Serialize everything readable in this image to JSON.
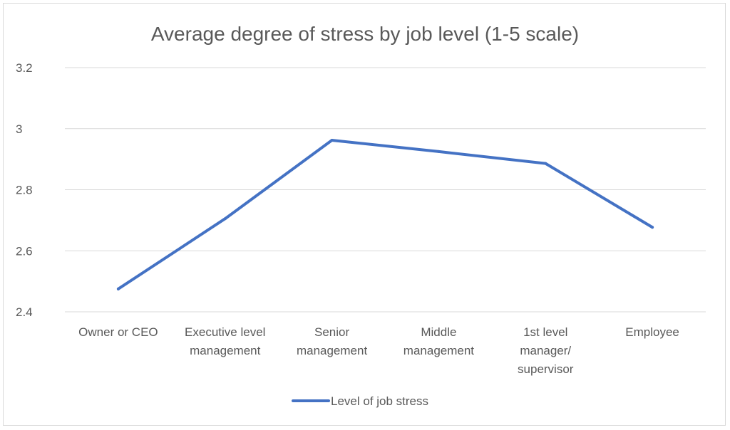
{
  "chart_data": {
    "type": "line",
    "title": "Average degree of stress by job level (1-5 scale)",
    "xlabel": "",
    "ylabel": "",
    "categories": [
      [
        "Owner or CEO"
      ],
      [
        "Executive level",
        "management"
      ],
      [
        "Senior",
        "management"
      ],
      [
        "Middle",
        "management"
      ],
      [
        "1st level",
        "manager/",
        "supervisor"
      ],
      [
        "Employee"
      ]
    ],
    "series": [
      {
        "name": "Level of job stress",
        "values": [
          2.475,
          2.705,
          2.962,
          2.925,
          2.886,
          2.677
        ],
        "color": "#4472C4"
      }
    ],
    "ylim": [
      2.4,
      3.2
    ],
    "yticks": [
      "2.4",
      "2.6",
      "2.8",
      "3",
      "3.2"
    ],
    "grid": true,
    "legend": "bottom"
  }
}
